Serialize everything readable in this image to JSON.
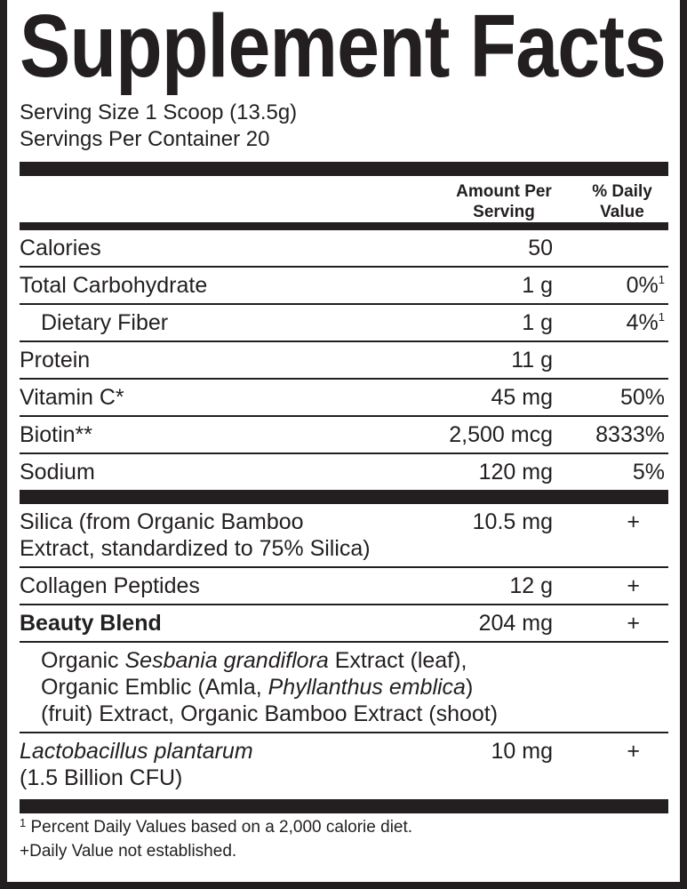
{
  "title": "Supplement Facts",
  "serving_size": "Serving Size 1 Scoop (13.5g)",
  "servings_per_container": "Servings Per Container 20",
  "header": {
    "amount_line1": "Amount Per",
    "amount_line2": "Serving",
    "dv_line1": "% Daily",
    "dv_line2": "Value"
  },
  "rows": [
    {
      "name": "Calories",
      "amount": "50",
      "dv": ""
    },
    {
      "name": "Total Carbohydrate",
      "amount": "1 g",
      "dv": "0%",
      "mark": "1"
    },
    {
      "name": "Dietary Fiber",
      "amount": "1 g",
      "dv": "4%",
      "mark": "1"
    },
    {
      "name": "Protein",
      "amount": "11 g",
      "dv": ""
    },
    {
      "name": "Vitamin C*",
      "amount": "45 mg",
      "dv": "50%"
    },
    {
      "name": "Biotin**",
      "amount": "2,500 mcg",
      "dv": "8333%"
    },
    {
      "name": "Sodium",
      "amount": "120 mg",
      "dv": "5%"
    }
  ],
  "rows2": [
    {
      "name_line1": "Silica (from Organic Bamboo",
      "name_line2": "Extract, standardized to 75% Silica)",
      "amount": "10.5 mg",
      "dv": "+"
    },
    {
      "name": "Collagen Peptides",
      "amount": "12 g",
      "dv": "+"
    },
    {
      "name": "Beauty Blend",
      "amount": "204 mg",
      "dv": "+"
    }
  ],
  "blend": {
    "l1a": "Organic ",
    "l1b": "Sesbania grandiflora",
    "l1c": " Extract (leaf),",
    "l2a": "Organic Emblic (Amla, ",
    "l2b": "Phyllanthus emblica",
    "l2c": ")",
    "l3": "(fruit) Extract, Organic Bamboo Extract (shoot)"
  },
  "probiotic": {
    "name": "Lactobacillus plantarum",
    "sub": "(1.5 Billion CFU)",
    "amount": "10 mg",
    "dv": "+"
  },
  "footnotes": {
    "mark": "1",
    "line1": " Percent Daily Values based on a 2,000 calorie diet.",
    "line2": "+Daily Value not established."
  }
}
